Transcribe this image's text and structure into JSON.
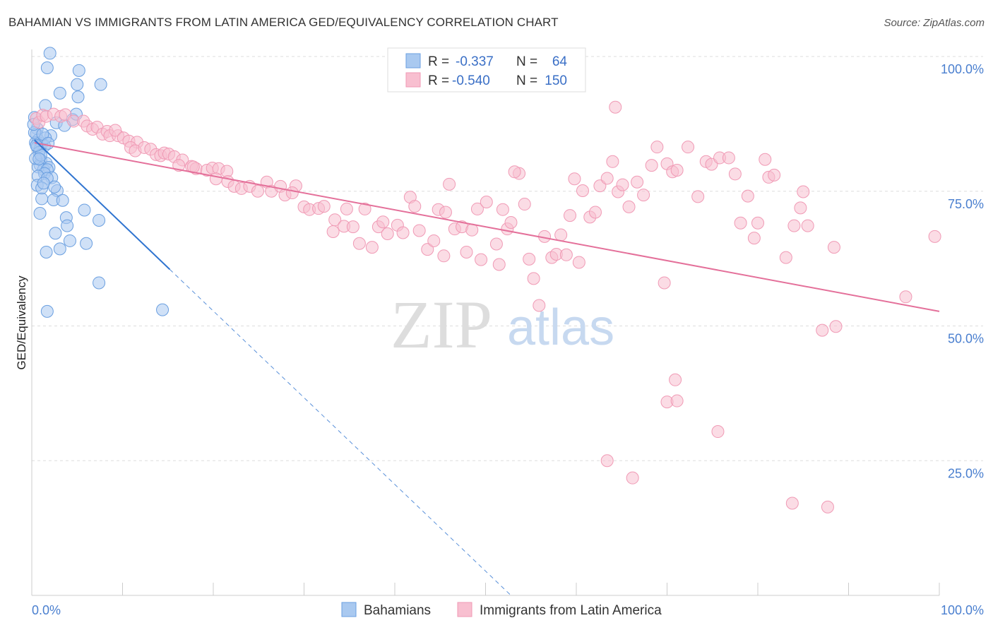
{
  "title": "BAHAMIAN VS IMMIGRANTS FROM LATIN AMERICA GED/EQUIVALENCY CORRELATION CHART",
  "source": "Source: ZipAtlas.com",
  "watermark": {
    "zip": "ZIP",
    "atlas": "atlas"
  },
  "colors": {
    "blue_fill": "#a9c9f0",
    "blue_stroke": "#6a9fe0",
    "blue_line": "#2f74d0",
    "pink_fill": "#f8bfd0",
    "pink_stroke": "#f09ab5",
    "pink_line": "#e4709a",
    "tick_label": "#4a7fcf",
    "grid": "#dddddd"
  },
  "legend": {
    "rows": [
      {
        "r_label": "R =",
        "r_value": "-0.337",
        "n_label": "N =",
        "n_value": "64",
        "series": "blue"
      },
      {
        "r_label": "R =",
        "r_value": "-0.540",
        "n_label": "N =",
        "n_value": "150",
        "series": "pink"
      }
    ]
  },
  "chart_data": {
    "type": "scatter",
    "title": "BAHAMIAN VS IMMIGRANTS FROM LATIN AMERICA GED/EQUIVALENCY CORRELATION CHART",
    "xlabel": "",
    "ylabel": "GED/Equivalency",
    "xlim": [
      0,
      100
    ],
    "ylim": [
      0,
      100
    ],
    "x_tick_labels": [
      "0.0%",
      "100.0%"
    ],
    "y_ticks": [
      25,
      50,
      75,
      100
    ],
    "y_tick_labels": [
      "25.0%",
      "50.0%",
      "75.0%",
      "100.0%"
    ],
    "grid": true,
    "legend_placement": "top-center",
    "series": [
      {
        "name": "Bahamians",
        "color": "#a9c9f0",
        "r": -0.337,
        "n": 64,
        "trend": {
          "x0": 0.3,
          "y0": 84.5,
          "x1": 15.2,
          "y1": 60.5,
          "dash_x1": 52.8,
          "dash_y1": 0
        },
        "points": [
          [
            2.0,
            100.6
          ],
          [
            1.7,
            97.9
          ],
          [
            5.2,
            97.4
          ],
          [
            3.1,
            93.2
          ],
          [
            1.5,
            90.9
          ],
          [
            5.1,
            92.5
          ],
          [
            7.6,
            94.8
          ],
          [
            5.0,
            94.8
          ],
          [
            2.7,
            87.7
          ],
          [
            4.5,
            88.3
          ],
          [
            3.6,
            87.2
          ],
          [
            4.9,
            89.3
          ],
          [
            0.3,
            88.7
          ],
          [
            0.6,
            86.6
          ],
          [
            0.5,
            85.6
          ],
          [
            0.7,
            84.5
          ],
          [
            0.4,
            84.0
          ],
          [
            1.1,
            83.8
          ],
          [
            0.9,
            82.8
          ],
          [
            1.4,
            83.4
          ],
          [
            0.6,
            83.2
          ],
          [
            0.3,
            85.9
          ],
          [
            2.1,
            85.3
          ],
          [
            1.5,
            84.9
          ],
          [
            0.8,
            82.2
          ],
          [
            0.2,
            87.4
          ],
          [
            1.2,
            85.6
          ],
          [
            1.8,
            83.9
          ],
          [
            1.0,
            80.8
          ],
          [
            1.6,
            80.2
          ],
          [
            0.9,
            79.9
          ],
          [
            1.3,
            79.0
          ],
          [
            0.7,
            79.5
          ],
          [
            1.9,
            79.4
          ],
          [
            1.7,
            79.0
          ],
          [
            1.4,
            78.3
          ],
          [
            2.2,
            77.5
          ],
          [
            0.7,
            77.8
          ],
          [
            0.4,
            81.1
          ],
          [
            1.0,
            81.7
          ],
          [
            2.8,
            75.1
          ],
          [
            0.6,
            76.1
          ],
          [
            1.7,
            77.4
          ],
          [
            2.4,
            73.4
          ],
          [
            1.1,
            73.6
          ],
          [
            3.4,
            73.3
          ],
          [
            0.9,
            70.9
          ],
          [
            5.8,
            71.5
          ],
          [
            3.8,
            70.1
          ],
          [
            7.4,
            69.6
          ],
          [
            3.9,
            68.6
          ],
          [
            2.6,
            67.2
          ],
          [
            4.2,
            65.8
          ],
          [
            6.0,
            65.3
          ],
          [
            3.1,
            64.3
          ],
          [
            1.6,
            63.7
          ],
          [
            7.4,
            58.0
          ],
          [
            1.1,
            75.6
          ],
          [
            14.4,
            53.0
          ],
          [
            1.7,
            52.7
          ],
          [
            0.5,
            83.5
          ],
          [
            0.8,
            81.0
          ],
          [
            1.3,
            76.5
          ],
          [
            2.5,
            75.8
          ]
        ]
      },
      {
        "name": "Immigrants from Latin America",
        "color": "#f8bfd0",
        "r": -0.54,
        "n": 150,
        "trend": {
          "x0": 0.3,
          "y0": 84.0,
          "x1": 100.0,
          "y1": 52.7
        },
        "points": [
          [
            0.5,
            88.5
          ],
          [
            0.8,
            87.8
          ],
          [
            1.2,
            89.1
          ],
          [
            1.6,
            88.9
          ],
          [
            2.4,
            89.3
          ],
          [
            3.2,
            88.9
          ],
          [
            3.7,
            89.2
          ],
          [
            4.6,
            88.0
          ],
          [
            5.7,
            88.0
          ],
          [
            6.1,
            87.1
          ],
          [
            6.7,
            86.5
          ],
          [
            7.2,
            86.9
          ],
          [
            7.8,
            85.6
          ],
          [
            8.3,
            86.1
          ],
          [
            8.6,
            85.3
          ],
          [
            9.5,
            85.3
          ],
          [
            9.2,
            86.3
          ],
          [
            10.1,
            84.9
          ],
          [
            10.7,
            84.3
          ],
          [
            11.6,
            84.1
          ],
          [
            10.9,
            83.1
          ],
          [
            11.4,
            82.5
          ],
          [
            12.4,
            83.1
          ],
          [
            13.1,
            82.8
          ],
          [
            13.7,
            81.8
          ],
          [
            14.2,
            81.6
          ],
          [
            14.6,
            82.1
          ],
          [
            15.1,
            81.9
          ],
          [
            15.7,
            81.4
          ],
          [
            16.6,
            80.8
          ],
          [
            16.2,
            79.8
          ],
          [
            17.6,
            79.6
          ],
          [
            18.1,
            79.2
          ],
          [
            17.8,
            79.5
          ],
          [
            19.3,
            78.9
          ],
          [
            19.9,
            79.3
          ],
          [
            20.6,
            79.2
          ],
          [
            21.5,
            78.7
          ],
          [
            20.3,
            77.3
          ],
          [
            21.6,
            76.8
          ],
          [
            22.3,
            75.9
          ],
          [
            23.1,
            75.5
          ],
          [
            24.0,
            75.9
          ],
          [
            24.9,
            75.0
          ],
          [
            25.9,
            76.7
          ],
          [
            26.4,
            75.0
          ],
          [
            27.4,
            75.9
          ],
          [
            27.9,
            74.3
          ],
          [
            29.1,
            76.0
          ],
          [
            28.7,
            74.7
          ],
          [
            30.0,
            72.1
          ],
          [
            30.6,
            71.6
          ],
          [
            31.6,
            71.8
          ],
          [
            32.2,
            72.2
          ],
          [
            33.4,
            69.7
          ],
          [
            33.2,
            67.5
          ],
          [
            34.4,
            68.5
          ],
          [
            34.7,
            71.7
          ],
          [
            35.4,
            68.4
          ],
          [
            36.1,
            65.3
          ],
          [
            36.7,
            71.7
          ],
          [
            37.5,
            64.6
          ],
          [
            38.2,
            68.4
          ],
          [
            38.7,
            69.3
          ],
          [
            39.2,
            67.1
          ],
          [
            40.3,
            68.7
          ],
          [
            40.9,
            67.3
          ],
          [
            41.7,
            73.9
          ],
          [
            42.2,
            72.2
          ],
          [
            42.7,
            67.7
          ],
          [
            43.6,
            64.2
          ],
          [
            44.3,
            65.8
          ],
          [
            44.8,
            71.6
          ],
          [
            45.6,
            71.1
          ],
          [
            46.0,
            76.3
          ],
          [
            46.6,
            68.0
          ],
          [
            47.4,
            68.4
          ],
          [
            47.9,
            63.7
          ],
          [
            48.5,
            67.8
          ],
          [
            49.1,
            71.7
          ],
          [
            49.5,
            62.3
          ],
          [
            50.1,
            73.0
          ],
          [
            51.2,
            65.2
          ],
          [
            51.5,
            61.4
          ],
          [
            51.9,
            71.6
          ],
          [
            52.4,
            68.0
          ],
          [
            52.8,
            69.2
          ],
          [
            53.7,
            78.3
          ],
          [
            54.3,
            72.6
          ],
          [
            54.8,
            62.4
          ],
          [
            55.3,
            58.8
          ],
          [
            55.9,
            53.8
          ],
          [
            56.5,
            66.6
          ],
          [
            57.3,
            62.7
          ],
          [
            57.8,
            63.3
          ],
          [
            58.3,
            66.9
          ],
          [
            58.9,
            63.2
          ],
          [
            59.3,
            70.5
          ],
          [
            59.8,
            77.3
          ],
          [
            60.7,
            75.1
          ],
          [
            61.5,
            70.2
          ],
          [
            62.1,
            71.1
          ],
          [
            62.6,
            76.0
          ],
          [
            63.4,
            77.4
          ],
          [
            64.0,
            80.5
          ],
          [
            64.6,
            74.9
          ],
          [
            65.1,
            76.2
          ],
          [
            65.8,
            72.1
          ],
          [
            66.7,
            76.7
          ],
          [
            67.4,
            74.3
          ],
          [
            68.3,
            79.8
          ],
          [
            68.9,
            83.2
          ],
          [
            69.7,
            58.0
          ],
          [
            70.0,
            80.1
          ],
          [
            70.6,
            78.6
          ],
          [
            71.1,
            78.9
          ],
          [
            72.3,
            83.2
          ],
          [
            73.4,
            74.0
          ],
          [
            74.3,
            80.5
          ],
          [
            74.9,
            80.0
          ],
          [
            75.8,
            81.2
          ],
          [
            76.8,
            81.2
          ],
          [
            77.5,
            78.2
          ],
          [
            78.1,
            69.1
          ],
          [
            78.9,
            74.1
          ],
          [
            79.6,
            66.3
          ],
          [
            80.0,
            69.1
          ],
          [
            80.8,
            80.9
          ],
          [
            81.2,
            77.6
          ],
          [
            81.8,
            78.0
          ],
          [
            83.1,
            62.7
          ],
          [
            84.0,
            68.6
          ],
          [
            84.7,
            71.9
          ],
          [
            85.0,
            74.9
          ],
          [
            85.5,
            68.6
          ],
          [
            87.1,
            49.2
          ],
          [
            88.6,
            49.9
          ],
          [
            88.4,
            64.6
          ],
          [
            64.3,
            90.6
          ],
          [
            53.2,
            78.6
          ],
          [
            45.4,
            63.0
          ],
          [
            99.5,
            66.6
          ],
          [
            96.3,
            55.4
          ],
          [
            70.9,
            40.0
          ],
          [
            70.0,
            35.9
          ],
          [
            71.1,
            36.1
          ],
          [
            75.6,
            30.4
          ],
          [
            63.4,
            25.0
          ],
          [
            66.2,
            21.8
          ],
          [
            83.8,
            17.1
          ],
          [
            87.7,
            16.4
          ],
          [
            60.3,
            61.8
          ]
        ]
      }
    ]
  }
}
